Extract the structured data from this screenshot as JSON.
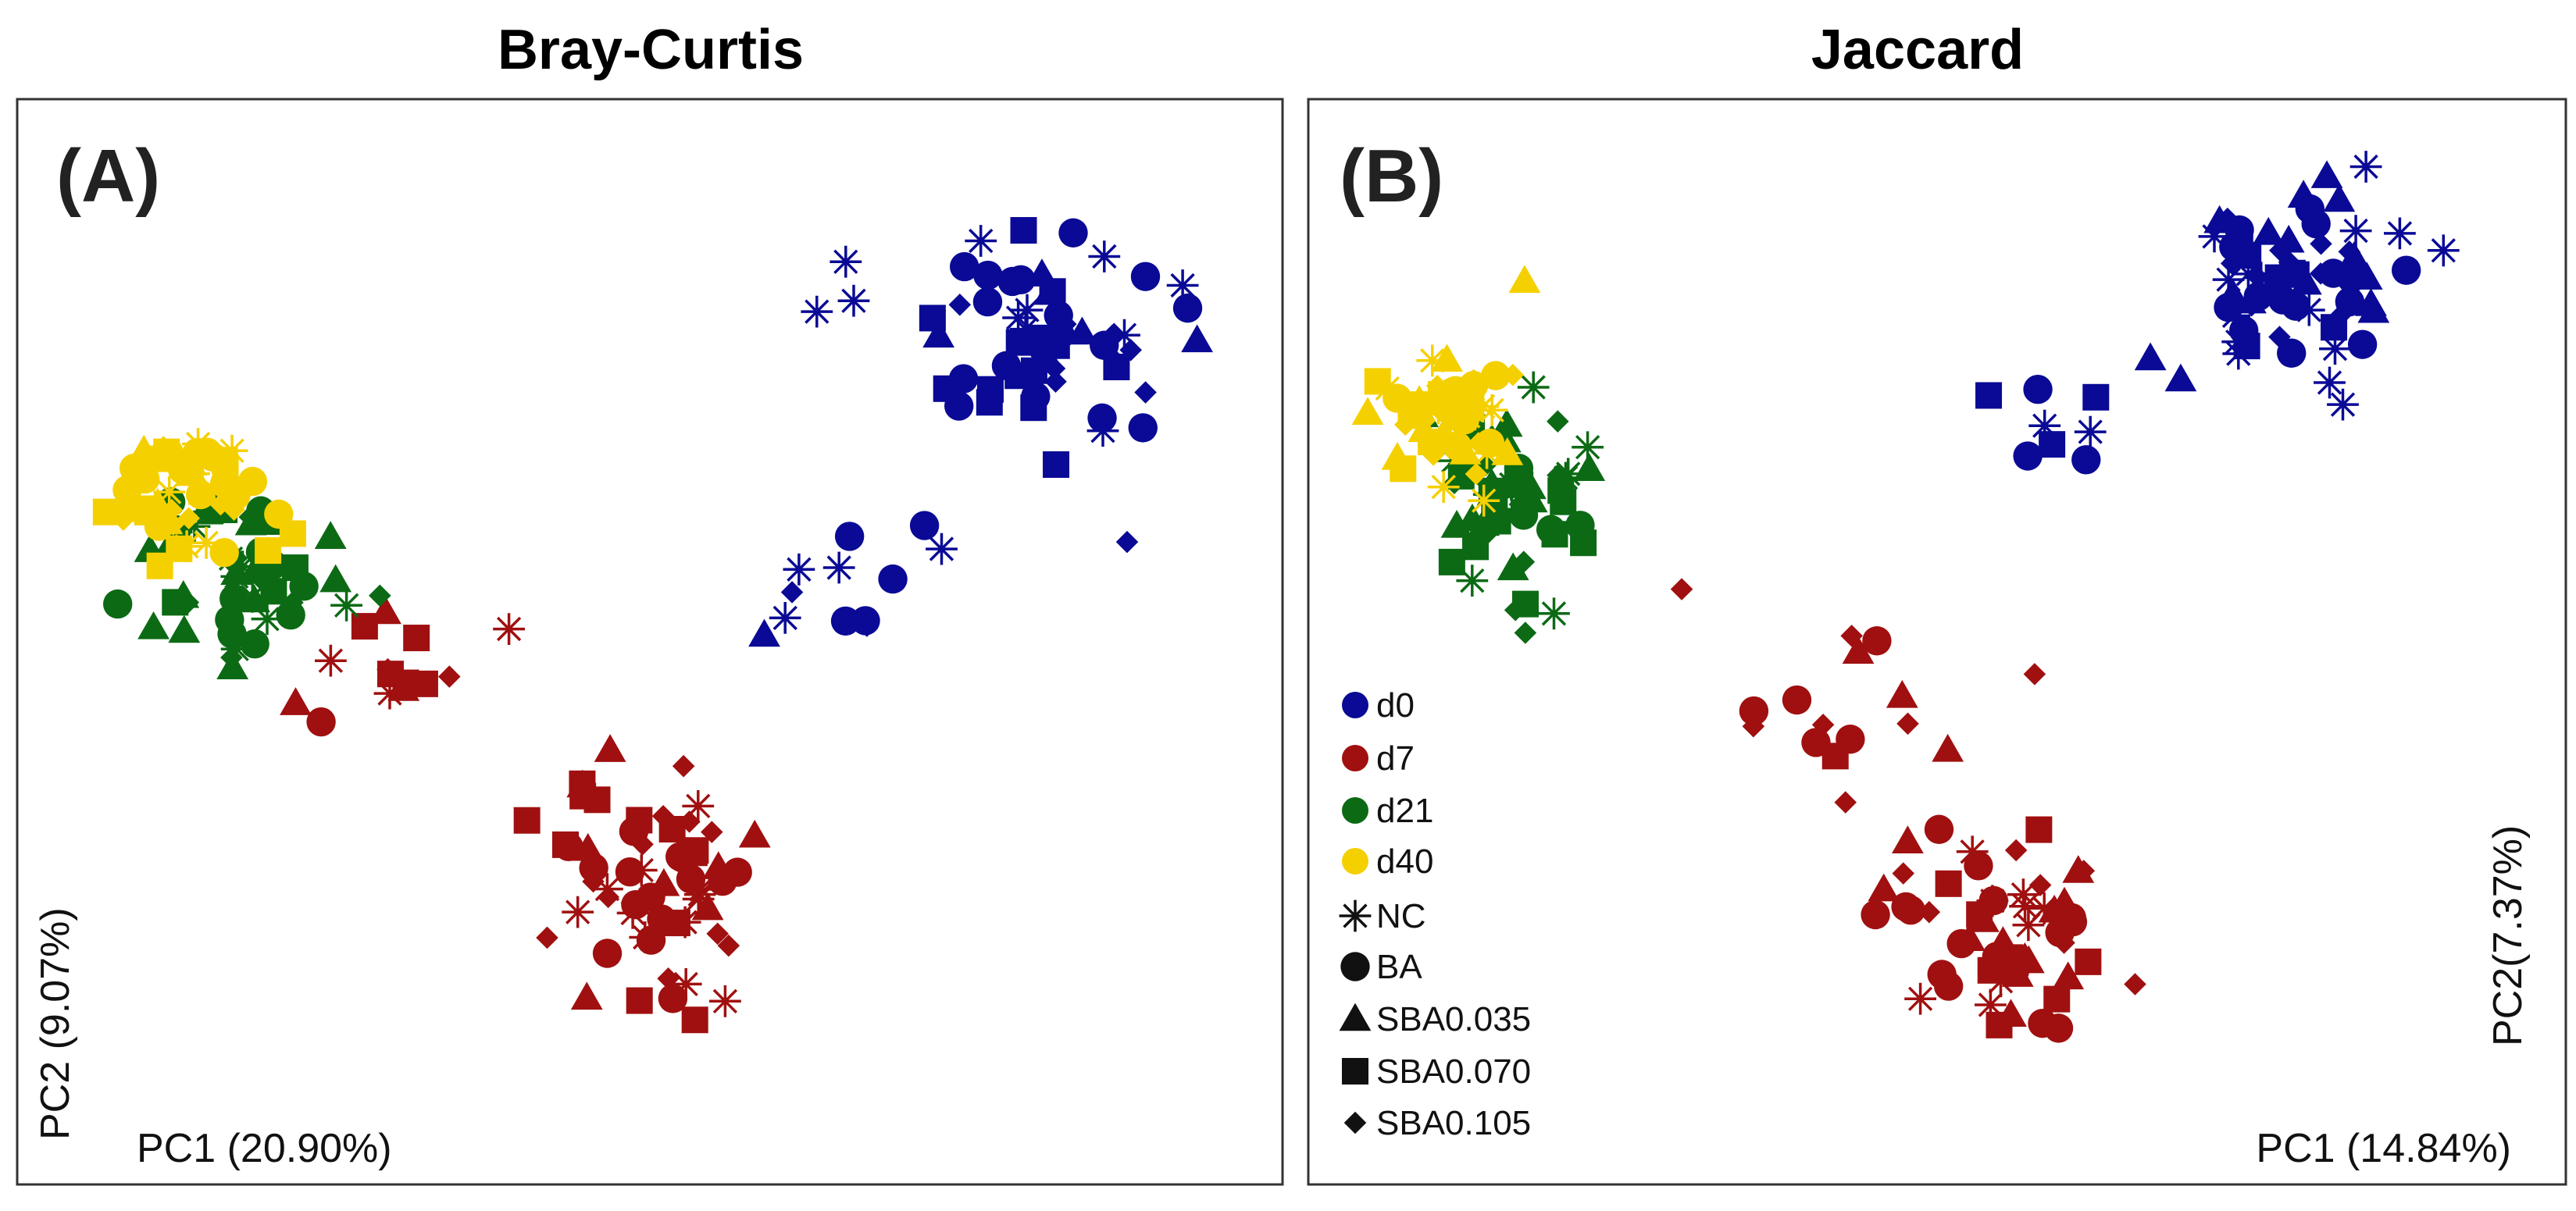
{
  "colors": {
    "d0": "#0a0a96",
    "d7": "#a01010",
    "d21": "#0c6a14",
    "d40": "#f5d000",
    "frame": "#333333"
  },
  "legend": {
    "groups": [
      {
        "key": "d0",
        "label": "d0"
      },
      {
        "key": "d7",
        "label": "d7"
      },
      {
        "key": "d21",
        "label": "d21"
      },
      {
        "key": "d40",
        "label": "d40"
      }
    ],
    "shapes": [
      {
        "key": "star",
        "label": "NC"
      },
      {
        "key": "circle",
        "label": "BA"
      },
      {
        "key": "triangle",
        "label": "SBA0.035"
      },
      {
        "key": "square",
        "label": "SBA0.070"
      },
      {
        "key": "diamond",
        "label": "SBA0.105"
      }
    ]
  },
  "chart_data": [
    {
      "type": "scatter",
      "title": "Bray-Curtis",
      "panel_label": "(A)",
      "xlabel": "PC1 (20.90%)",
      "ylabel": "PC2 (9.07%)",
      "xlim": [
        -0.5,
        0.5
      ],
      "ylim": [
        -0.45,
        0.45
      ],
      "grid": false,
      "clusters": [
        {
          "group": "d0",
          "center": [
            0.32,
            0.26
          ],
          "spread": [
            0.08,
            0.07
          ],
          "n": 60
        },
        {
          "group": "d0",
          "center": [
            0.14,
            0.05
          ],
          "spread": [
            0.05,
            0.06
          ],
          "n": 12
        },
        {
          "group": "d7",
          "center": [
            0.0,
            -0.22
          ],
          "spread": [
            0.07,
            0.09
          ],
          "n": 58
        },
        {
          "group": "d7",
          "center": [
            -0.22,
            -0.02
          ],
          "spread": [
            0.06,
            0.04
          ],
          "n": 14
        },
        {
          "group": "d21",
          "center": [
            -0.35,
            0.06
          ],
          "spread": [
            0.06,
            0.05
          ],
          "n": 52
        },
        {
          "group": "d40",
          "center": [
            -0.38,
            0.13
          ],
          "spread": [
            0.05,
            0.04
          ],
          "n": 50
        }
      ]
    },
    {
      "type": "scatter",
      "title": "Jaccard",
      "panel_label": "(B)",
      "xlabel": "PC1 (14.84%)",
      "ylabel": "PC2(7.37%)",
      "xlim": [
        -0.5,
        0.5
      ],
      "ylim": [
        -0.45,
        0.45
      ],
      "grid": false,
      "clusters": [
        {
          "group": "d0",
          "center": [
            0.3,
            0.32
          ],
          "spread": [
            0.06,
            0.06
          ],
          "n": 62
        },
        {
          "group": "d0",
          "center": [
            0.12,
            0.2
          ],
          "spread": [
            0.05,
            0.05
          ],
          "n": 10
        },
        {
          "group": "d7",
          "center": [
            0.05,
            -0.25
          ],
          "spread": [
            0.07,
            0.07
          ],
          "n": 56
        },
        {
          "group": "d7",
          "center": [
            -0.05,
            -0.07
          ],
          "spread": [
            0.08,
            0.07
          ],
          "n": 16
        },
        {
          "group": "d21",
          "center": [
            -0.35,
            0.12
          ],
          "spread": [
            0.05,
            0.07
          ],
          "n": 52
        },
        {
          "group": "d40",
          "center": [
            -0.4,
            0.2
          ],
          "spread": [
            0.04,
            0.05
          ],
          "n": 50
        }
      ]
    }
  ]
}
